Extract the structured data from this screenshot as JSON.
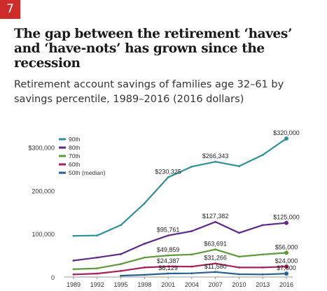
{
  "badge": "7",
  "headline": "The gap between the retirement ‘haves’ and ‘have-nots’ has grown since the recession",
  "subheadline": "Retirement account savings of families age 32–61 by savings percentile, 1989–2016 (2016 dollars)",
  "chart_data": {
    "type": "line",
    "title": "",
    "xlabel": "",
    "ylabel": "",
    "x": [
      "1989",
      "1992",
      "1995",
      "1998",
      "2001",
      "2004",
      "2007",
      "2010",
      "2013",
      "2016"
    ],
    "ylim": [
      0,
      320000
    ],
    "yticks": [
      {
        "value": 0,
        "label": "0"
      },
      {
        "value": 100000,
        "label": "100,000"
      },
      {
        "value": 200000,
        "label": "200,000"
      },
      {
        "value": 300000,
        "label": "$300,000"
      }
    ],
    "grid": false,
    "legend_position": "top-left",
    "series": [
      {
        "name": "90th",
        "color": "#2e9196",
        "values": [
          95000,
          96000,
          120000,
          170000,
          230325,
          255000,
          266343,
          256000,
          282000,
          320000
        ]
      },
      {
        "name": "80th",
        "color": "#5e2a8a",
        "values": [
          38000,
          45000,
          53000,
          77000,
          95761,
          106000,
          127382,
          102000,
          120000,
          125000
        ]
      },
      {
        "name": "70th",
        "color": "#5e9a3a",
        "values": [
          18000,
          20000,
          30000,
          45000,
          49859,
          52000,
          63691,
          47000,
          52000,
          56000
        ]
      },
      {
        "name": "60th",
        "color": "#a8205a",
        "values": [
          6000,
          8000,
          14000,
          22000,
          24387,
          24000,
          31266,
          22000,
          22000,
          24000
        ]
      },
      {
        "name": "50th (median)",
        "color": "#2a5f8e",
        "values": [
          null,
          null,
          3000,
          5000,
          8129,
          8500,
          11580,
          6500,
          6000,
          7800
        ]
      }
    ],
    "annotations": [
      {
        "series": 0,
        "index": 4,
        "label": "$230,325"
      },
      {
        "series": 0,
        "index": 6,
        "label": "$266,343"
      },
      {
        "series": 0,
        "index": 9,
        "label": "$320,000"
      },
      {
        "series": 1,
        "index": 4,
        "label": "$95,761"
      },
      {
        "series": 1,
        "index": 6,
        "label": "$127,382"
      },
      {
        "series": 1,
        "index": 9,
        "label": "$125,000"
      },
      {
        "series": 2,
        "index": 4,
        "label": "$49,859"
      },
      {
        "series": 2,
        "index": 6,
        "label": "$63,691"
      },
      {
        "series": 2,
        "index": 9,
        "label": "$56,000"
      },
      {
        "series": 3,
        "index": 4,
        "label": "$24,387"
      },
      {
        "series": 3,
        "index": 6,
        "label": "$31,266"
      },
      {
        "series": 3,
        "index": 9,
        "label": "$24,000"
      },
      {
        "series": 4,
        "index": 4,
        "label": "$8,129"
      },
      {
        "series": 4,
        "index": 6,
        "label": "$11,580"
      },
      {
        "series": 4,
        "index": 9,
        "label": "$7,800"
      }
    ]
  }
}
